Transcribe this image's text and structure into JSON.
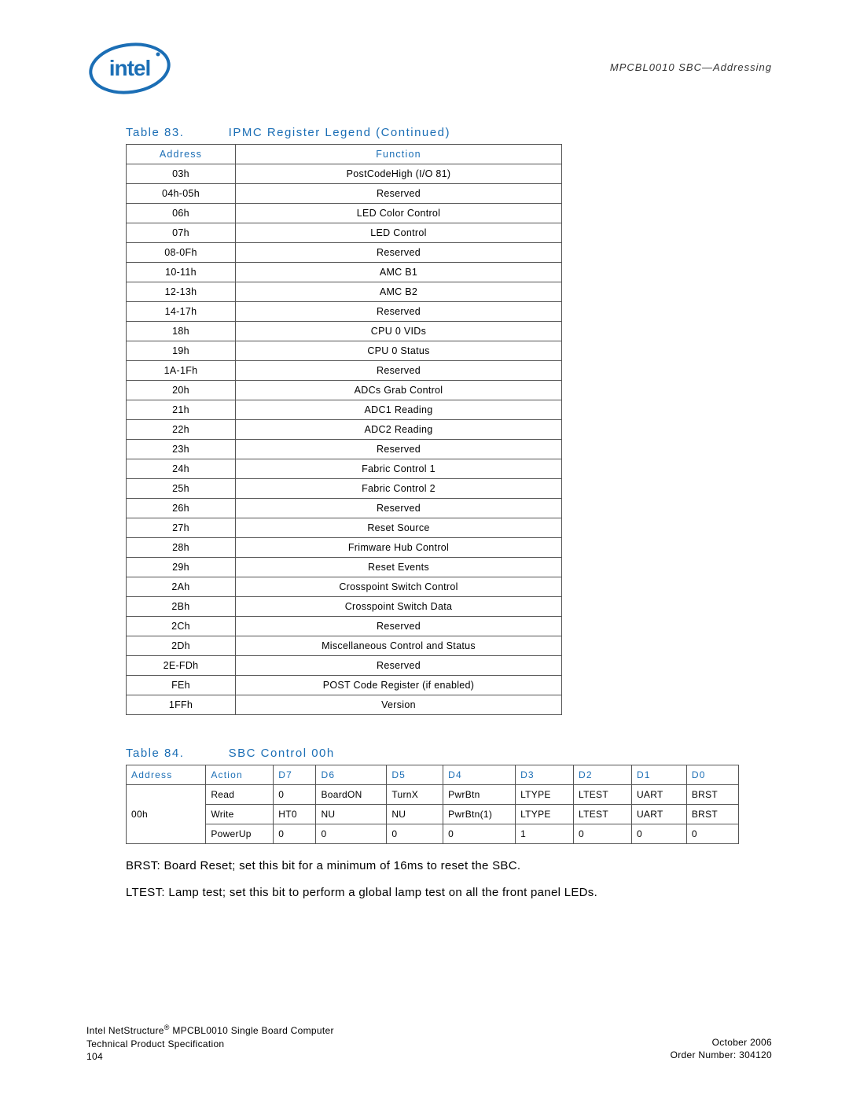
{
  "header": {
    "doc_ref": "MPCBL0010 SBC—Addressing"
  },
  "logo": {
    "text": "intel",
    "color": "#1b6eb5"
  },
  "table83": {
    "caption_num": "Table 83.",
    "caption_title": "IPMC Register Legend (Continued)",
    "headers": {
      "address": "Address",
      "function": "Function"
    },
    "rows": [
      {
        "address": "03h",
        "function": "PostCodeHigh (I/O 81)"
      },
      {
        "address": "04h-05h",
        "function": "Reserved"
      },
      {
        "address": "06h",
        "function": "LED Color Control"
      },
      {
        "address": "07h",
        "function": "LED Control"
      },
      {
        "address": "08-0Fh",
        "function": "Reserved"
      },
      {
        "address": "10-11h",
        "function": "AMC B1"
      },
      {
        "address": "12-13h",
        "function": "AMC B2"
      },
      {
        "address": "14-17h",
        "function": "Reserved"
      },
      {
        "address": "18h",
        "function": "CPU 0 VIDs"
      },
      {
        "address": "19h",
        "function": "CPU 0 Status"
      },
      {
        "address": "1A-1Fh",
        "function": "Reserved"
      },
      {
        "address": "20h",
        "function": "ADCs Grab Control"
      },
      {
        "address": "21h",
        "function": "ADC1 Reading"
      },
      {
        "address": "22h",
        "function": "ADC2 Reading"
      },
      {
        "address": "23h",
        "function": "Reserved"
      },
      {
        "address": "24h",
        "function": "Fabric Control 1"
      },
      {
        "address": "25h",
        "function": "Fabric Control 2"
      },
      {
        "address": "26h",
        "function": "Reserved"
      },
      {
        "address": "27h",
        "function": "Reset Source"
      },
      {
        "address": "28h",
        "function": "Frimware Hub Control"
      },
      {
        "address": "29h",
        "function": "Reset Events"
      },
      {
        "address": "2Ah",
        "function": "Crosspoint Switch Control"
      },
      {
        "address": "2Bh",
        "function": "Crosspoint Switch Data"
      },
      {
        "address": "2Ch",
        "function": "Reserved"
      },
      {
        "address": "2Dh",
        "function": "Miscellaneous Control and Status"
      },
      {
        "address": "2E-FDh",
        "function": "Reserved"
      },
      {
        "address": "FEh",
        "function": "POST Code Register (if enabled)"
      },
      {
        "address": "1FFh",
        "function": "Version"
      }
    ]
  },
  "table84": {
    "caption_num": "Table 84.",
    "caption_title": "SBC Control 00h",
    "headers": [
      "Address",
      "Action",
      "D7",
      "D6",
      "D5",
      "D4",
      "D3",
      "D2",
      "D1",
      "D0"
    ],
    "address_cell": "00h",
    "rows": [
      [
        "Read",
        "0",
        "BoardON",
        "TurnX",
        "PwrBtn",
        "LTYPE",
        "LTEST",
        "UART",
        "BRST"
      ],
      [
        "Write",
        "HT0",
        "NU",
        "NU",
        "PwrBtn(1)",
        "LTYPE",
        "LTEST",
        "UART",
        "BRST"
      ],
      [
        "PowerUp",
        "0",
        "0",
        "0",
        "0",
        "1",
        "0",
        "0",
        "0"
      ]
    ]
  },
  "descriptions": {
    "brst": "BRST: Board Reset; set this bit for a minimum of 16ms to reset the SBC.",
    "ltest": "LTEST: Lamp test; set this bit to perform a global lamp test on all the front panel LEDs."
  },
  "footer": {
    "line1_a": "Intel NetStructure",
    "line1_b": " MPCBL0010 Single Board Computer",
    "line2": "Technical Product Specification",
    "page": "104",
    "date": "October 2006",
    "order": "Order Number: 304120"
  }
}
